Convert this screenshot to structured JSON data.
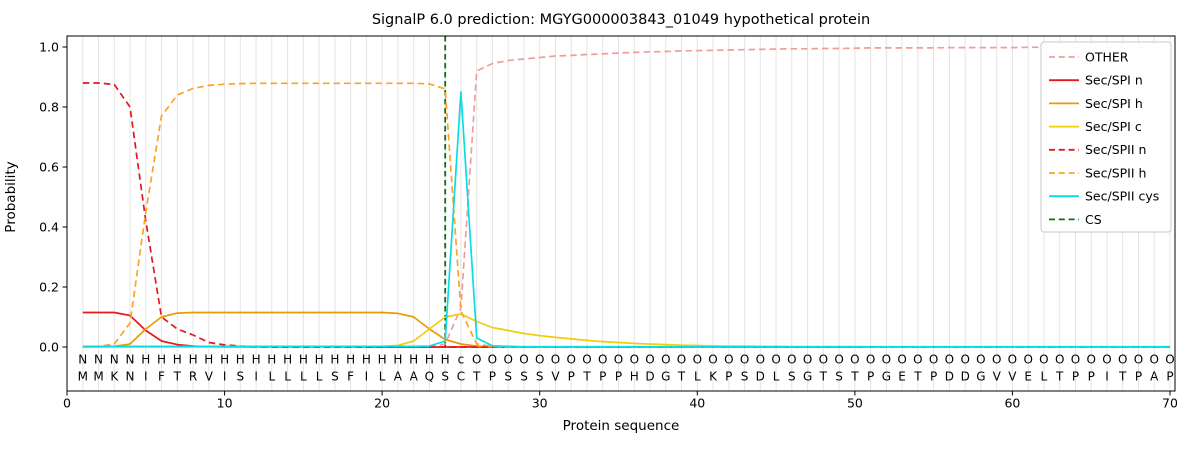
{
  "title": "SignalP 6.0 prediction: MGYG000003843_01049 hypothetical protein",
  "chart_data": {
    "type": "line",
    "title": "SignalP 6.0 prediction: MGYG000003843_01049 hypothetical protein",
    "xlabel": "Protein sequence",
    "ylabel": "Probability",
    "xlim": [
      0,
      73
    ],
    "ylim": [
      0,
      1.0
    ],
    "x_ticks": [
      0,
      10,
      20,
      30,
      40,
      50,
      60,
      70
    ],
    "y_ticks": [
      0,
      0.2,
      0.4,
      0.6,
      0.8,
      1
    ],
    "grid": "light vertical gridline at every residue position",
    "legend_position": "upper right",
    "cs_position": 24,
    "cs_color": "#107010",
    "sequence": "MMKNIFTRVISILLLLSFILAAQSCTPSSSVPTPPHDGTLKPSDLSGTSTPGETPDDGVVELTPPITPAP",
    "annotation": "NNNNHHHHHHHHHHHHHHHHHHHHcOOOOOOOOOOOOOOOOOOOOOOOOOOOOOOOOOOOOOOOOOOOOO",
    "annotation_colors": {
      "N": "#e3191c",
      "H": "#ff9c00",
      "c": "#00d5df",
      "O": "#9e9e9e"
    },
    "series": [
      {
        "name": "OTHER",
        "color": "#f29c9c",
        "dash": true,
        "values": [
          0.002,
          0.002,
          0.002,
          0.002,
          0.002,
          0.002,
          0.002,
          0.002,
          0.002,
          0.002,
          0.002,
          0.002,
          0.002,
          0.002,
          0.002,
          0.002,
          0.002,
          0.002,
          0.002,
          0.002,
          0.002,
          0.002,
          0.003,
          0.01,
          0.13,
          0.92,
          0.945,
          0.955,
          0.96,
          0.965,
          0.97,
          0.972,
          0.975,
          0.977,
          0.98,
          0.982,
          0.984,
          0.985,
          0.987,
          0.988,
          0.989,
          0.99,
          0.991,
          0.992,
          0.993,
          0.994,
          0.994,
          0.995,
          0.995,
          0.996,
          0.997,
          0.997,
          0.997,
          0.997,
          0.997,
          0.998,
          0.998,
          0.998,
          0.998,
          0.998,
          0.999,
          0.999,
          0.999,
          0.999,
          0.999,
          0.999,
          0.999,
          0.999,
          0.999,
          0.999
        ]
      },
      {
        "name": "Sec/SPI n",
        "color": "#e3191c",
        "dash": false,
        "values": [
          0.115,
          0.115,
          0.115,
          0.105,
          0.055,
          0.02,
          0.008,
          0.003,
          0.001,
          0,
          0,
          0,
          0,
          0,
          0,
          0,
          0,
          0,
          0,
          0,
          0,
          0,
          0,
          0,
          0,
          0,
          0,
          0,
          0,
          0,
          0,
          0,
          0,
          0,
          0,
          0,
          0,
          0,
          0,
          0,
          0,
          0,
          0,
          0,
          0,
          0,
          0,
          0,
          0,
          0,
          0,
          0,
          0,
          0,
          0,
          0,
          0,
          0,
          0,
          0,
          0,
          0,
          0,
          0,
          0,
          0,
          0,
          0,
          0,
          0
        ]
      },
      {
        "name": "Sec/SPI h",
        "color": "#e89b05",
        "dash": false,
        "values": [
          0,
          0,
          0.002,
          0.01,
          0.06,
          0.1,
          0.113,
          0.115,
          0.115,
          0.115,
          0.115,
          0.115,
          0.115,
          0.115,
          0.115,
          0.115,
          0.115,
          0.115,
          0.115,
          0.115,
          0.112,
          0.1,
          0.06,
          0.025,
          0.01,
          0.003,
          0.001,
          0,
          0,
          0,
          0,
          0,
          0,
          0,
          0,
          0,
          0,
          0,
          0,
          0,
          0,
          0,
          0,
          0,
          0,
          0,
          0,
          0,
          0,
          0,
          0,
          0,
          0,
          0,
          0,
          0,
          0,
          0,
          0,
          0,
          0,
          0,
          0,
          0,
          0,
          0,
          0,
          0,
          0,
          0
        ]
      },
      {
        "name": "Sec/SPI c",
        "color": "#f0ce0a",
        "dash": false,
        "values": [
          0,
          0,
          0,
          0,
          0,
          0,
          0,
          0,
          0,
          0,
          0,
          0,
          0,
          0,
          0,
          0,
          0,
          0,
          0.001,
          0.002,
          0.005,
          0.02,
          0.06,
          0.1,
          0.11,
          0.085,
          0.065,
          0.055,
          0.045,
          0.038,
          0.032,
          0.027,
          0.022,
          0.018,
          0.015,
          0.012,
          0.01,
          0.008,
          0.006,
          0.005,
          0.004,
          0.003,
          0.003,
          0.002,
          0.002,
          0.001,
          0.001,
          0.001,
          0.001,
          0.001,
          0,
          0,
          0,
          0,
          0,
          0,
          0,
          0,
          0,
          0,
          0,
          0,
          0,
          0,
          0,
          0,
          0,
          0,
          0,
          0
        ]
      },
      {
        "name": "Sec/SPII n",
        "color": "#e3191c",
        "dash": true,
        "values": [
          0.88,
          0.88,
          0.875,
          0.8,
          0.42,
          0.1,
          0.06,
          0.04,
          0.015,
          0.007,
          0.003,
          0.001,
          0,
          0,
          0,
          0,
          0,
          0,
          0,
          0,
          0,
          0,
          0,
          0,
          0,
          0,
          0,
          0,
          0,
          0,
          0,
          0,
          0,
          0,
          0,
          0,
          0,
          0,
          0,
          0,
          0,
          0,
          0,
          0,
          0,
          0,
          0,
          0,
          0,
          0,
          0,
          0,
          0,
          0,
          0,
          0,
          0,
          0,
          0,
          0,
          0,
          0,
          0,
          0,
          0,
          0,
          0,
          0,
          0,
          0
        ]
      },
      {
        "name": "Sec/SPII h",
        "color": "#ffa226",
        "dash": true,
        "values": [
          0.001,
          0.002,
          0.01,
          0.08,
          0.45,
          0.77,
          0.84,
          0.862,
          0.872,
          0.876,
          0.878,
          0.879,
          0.879,
          0.879,
          0.879,
          0.879,
          0.879,
          0.879,
          0.879,
          0.879,
          0.879,
          0.879,
          0.877,
          0.86,
          0.12,
          0.01,
          0.002,
          0,
          0,
          0,
          0,
          0,
          0,
          0,
          0,
          0,
          0,
          0,
          0,
          0,
          0,
          0,
          0,
          0,
          0,
          0,
          0,
          0,
          0,
          0,
          0,
          0,
          0,
          0,
          0,
          0,
          0,
          0,
          0,
          0,
          0,
          0,
          0,
          0,
          0,
          0,
          0,
          0,
          0,
          0
        ]
      },
      {
        "name": "Sec/SPII cys",
        "color": "#0bdce4",
        "dash": false,
        "values": [
          0.002,
          0.002,
          0.002,
          0.002,
          0.002,
          0.002,
          0.002,
          0.002,
          0.002,
          0.002,
          0.002,
          0.002,
          0.002,
          0.002,
          0.002,
          0.002,
          0.002,
          0.002,
          0.002,
          0.002,
          0.002,
          0.002,
          0.003,
          0.02,
          0.85,
          0.03,
          0.004,
          0.002,
          0.001,
          0.001,
          0.001,
          0.001,
          0.001,
          0.001,
          0.001,
          0.001,
          0.001,
          0.001,
          0.001,
          0.001,
          0.001,
          0.001,
          0.001,
          0.001,
          0.001,
          0.001,
          0.001,
          0.001,
          0.001,
          0.001,
          0.001,
          0.001,
          0.001,
          0.001,
          0.001,
          0.001,
          0.001,
          0.001,
          0.001,
          0.001,
          0.001,
          0.001,
          0.001,
          0.001,
          0.001,
          0.001,
          0.001,
          0.001,
          0.001,
          0.001
        ]
      }
    ],
    "legend": [
      {
        "label": "OTHER",
        "color": "#f29c9c",
        "dash": true
      },
      {
        "label": "Sec/SPI n",
        "color": "#e3191c",
        "dash": false
      },
      {
        "label": "Sec/SPI h",
        "color": "#e89b05",
        "dash": false
      },
      {
        "label": "Sec/SPI c",
        "color": "#f0ce0a",
        "dash": false
      },
      {
        "label": "Sec/SPII n",
        "color": "#e3191c",
        "dash": true
      },
      {
        "label": "Sec/SPII h",
        "color": "#ffa226",
        "dash": true
      },
      {
        "label": "Sec/SPII cys",
        "color": "#0bdce4",
        "dash": false
      },
      {
        "label": "CS",
        "color": "#107010",
        "dash": true
      }
    ]
  }
}
